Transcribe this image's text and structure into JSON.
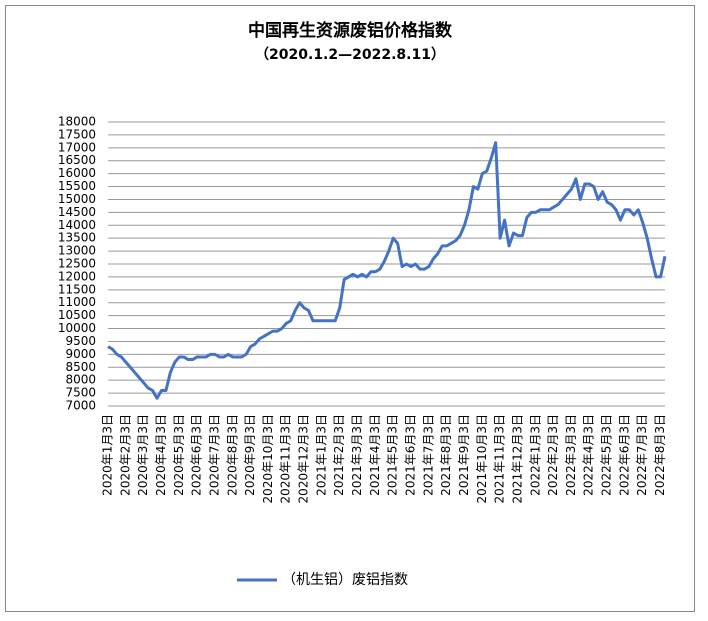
{
  "chart_data": {
    "type": "line",
    "title": "中国再生资源废铝价格指数",
    "subtitle": "（2020.1.2—2022.8.11）",
    "categories": [
      "2020年1月3日",
      null,
      null,
      null,
      "2020年2月3日",
      null,
      null,
      null,
      "2020年3月3日",
      null,
      null,
      null,
      "2020年4月3日",
      null,
      null,
      null,
      "2020年5月3日",
      null,
      null,
      null,
      "2020年6月3日",
      null,
      null,
      null,
      "2020年7月3日",
      null,
      null,
      null,
      "2020年8月3日",
      null,
      null,
      null,
      "2020年9月3日",
      null,
      null,
      null,
      "2020年10月3日",
      null,
      null,
      null,
      "2020年11月3日",
      null,
      null,
      null,
      "2020年12月3日",
      null,
      null,
      null,
      "2021年1月3日",
      null,
      null,
      null,
      "2021年2月3日",
      null,
      null,
      null,
      "2021年3月3日",
      null,
      null,
      null,
      "2021年4月3日",
      null,
      null,
      null,
      "2021年5月3日",
      null,
      null,
      null,
      "2021年6月3日",
      null,
      null,
      null,
      "2021年7月3日",
      null,
      null,
      null,
      "2021年8月3日",
      null,
      null,
      null,
      "2021年9月3日",
      null,
      null,
      null,
      "2021年10月3日",
      null,
      null,
      null,
      "2021年11月3日",
      null,
      null,
      null,
      "2021年12月3日",
      null,
      null,
      null,
      "2022年1月3日",
      null,
      null,
      null,
      "2022年2月3日",
      null,
      null,
      null,
      "2022年3月3日",
      null,
      null,
      null,
      "2022年4月3日",
      null,
      null,
      null,
      "2022年5月3日",
      null,
      null,
      null,
      "2022年6月3日",
      null,
      null,
      null,
      "2022年7月3日",
      null,
      null,
      null,
      "2022年8月3日",
      null
    ],
    "series": [
      {
        "name": "（机生铝）废铝指数",
        "color": "#4472c4",
        "values": [
          9300,
          9200,
          9000,
          8900,
          8700,
          8500,
          8300,
          8100,
          7900,
          7700,
          7600,
          7300,
          7600,
          7600,
          8300,
          8700,
          8900,
          8900,
          8800,
          8800,
          8900,
          8900,
          8900,
          9000,
          9000,
          8900,
          8900,
          9000,
          8900,
          8900,
          8900,
          9000,
          9300,
          9400,
          9600,
          9700,
          9800,
          9900,
          9900,
          10000,
          10200,
          10300,
          10700,
          11000,
          10800,
          10700,
          10300,
          10300,
          10300,
          10300,
          10300,
          10300,
          10800,
          11900,
          12000,
          12100,
          12000,
          12100,
          12000,
          12200,
          12200,
          12300,
          12600,
          13000,
          13500,
          13300,
          12400,
          12500,
          12400,
          12500,
          12300,
          12300,
          12400,
          12700,
          12900,
          13200,
          13200,
          13300,
          13400,
          13600,
          14000,
          14600,
          15500,
          15400,
          16000,
          16100,
          16600,
          17200,
          13500,
          14200,
          13200,
          13700,
          13600,
          13600,
          14300,
          14500,
          14500,
          14600,
          14600,
          14600,
          14700,
          14800,
          15000,
          15200,
          15400,
          15800,
          15000,
          15600,
          15600,
          15500,
          15000,
          15300,
          14900,
          14800,
          14600,
          14200,
          14600,
          14600,
          14400,
          14600,
          14100,
          13500,
          12700,
          12000,
          12000,
          12800
        ]
      }
    ],
    "ylim": [
      7000,
      18000
    ],
    "yticks": [
      7000,
      7500,
      8000,
      8500,
      9000,
      9500,
      10000,
      10500,
      11000,
      11500,
      12000,
      12500,
      13000,
      13500,
      14000,
      14500,
      15000,
      15500,
      16000,
      16500,
      17000,
      17500,
      18000
    ],
    "grid": true,
    "legend": "bottom"
  }
}
